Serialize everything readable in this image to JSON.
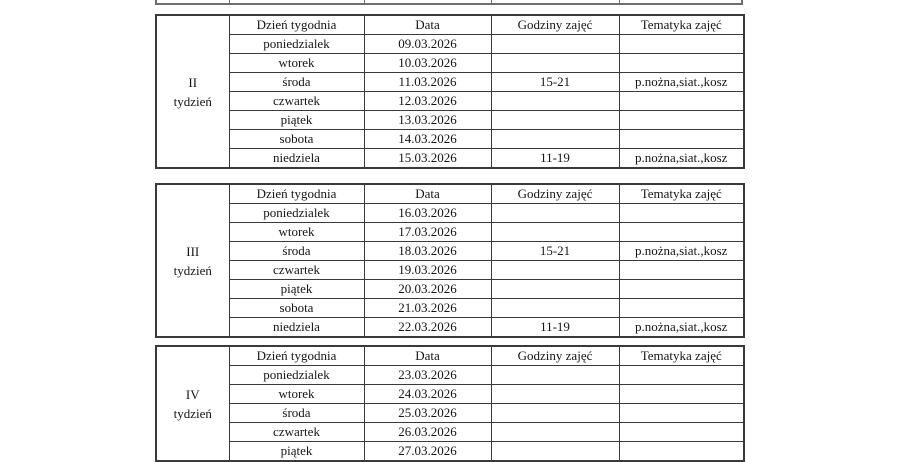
{
  "colors": {
    "background": "#ffffff",
    "text": "#151515",
    "border": "#3a3a3a",
    "clipped_border": "#6e6e6e"
  },
  "tables": [
    {
      "week_label_line1": "II",
      "week_label_line2": "tydzień",
      "headers": [
        "Dzień tygodnia",
        "Data",
        "Godziny zajęć",
        "Tematyka zajęć"
      ],
      "rows": [
        {
          "day": "poniedzialek",
          "date": "09.03.2026",
          "hours": "",
          "topic": ""
        },
        {
          "day": "wtorek",
          "date": "10.03.2026",
          "hours": "",
          "topic": ""
        },
        {
          "day": "środa",
          "date": "11.03.2026",
          "hours": "15-21",
          "topic": "p.nożna,siat.,kosz"
        },
        {
          "day": "czwartek",
          "date": "12.03.2026",
          "hours": "",
          "topic": ""
        },
        {
          "day": "piątek",
          "date": "13.03.2026",
          "hours": "",
          "topic": ""
        },
        {
          "day": "sobota",
          "date": "14.03.2026",
          "hours": "",
          "topic": ""
        },
        {
          "day": "niedziela",
          "date": "15.03.2026",
          "hours": "11-19",
          "topic": "p.nożna,siat.,kosz"
        }
      ]
    },
    {
      "week_label_line1": "III",
      "week_label_line2": "tydzień",
      "headers": [
        "Dzień tygodnia",
        "Data",
        "Godziny zajęć",
        "Tematyka zajęć"
      ],
      "rows": [
        {
          "day": "poniedzialek",
          "date": "16.03.2026",
          "hours": "",
          "topic": ""
        },
        {
          "day": "wtorek",
          "date": "17.03.2026",
          "hours": "",
          "topic": ""
        },
        {
          "day": "środa",
          "date": "18.03.2026",
          "hours": "15-21",
          "topic": "p.nożna,siat.,kosz"
        },
        {
          "day": "czwartek",
          "date": "19.03.2026",
          "hours": "",
          "topic": ""
        },
        {
          "day": "piątek",
          "date": "20.03.2026",
          "hours": "",
          "topic": ""
        },
        {
          "day": "sobota",
          "date": "21.03.2026",
          "hours": "",
          "topic": ""
        },
        {
          "day": "niedziela",
          "date": "22.03.2026",
          "hours": "11-19",
          "topic": "p.nożna,siat.,kosz"
        }
      ]
    },
    {
      "week_label_line1": "IV",
      "week_label_line2": "tydzień",
      "headers": [
        "Dzień tygodnia",
        "Data",
        "Godziny zajęć",
        "Tematyka zajęć"
      ],
      "rows": [
        {
          "day": "poniedzialek",
          "date": "23.03.2026",
          "hours": "",
          "topic": ""
        },
        {
          "day": "wtorek",
          "date": "24.03.2026",
          "hours": "",
          "topic": ""
        },
        {
          "day": "środa",
          "date": "25.03.2026",
          "hours": "",
          "topic": ""
        },
        {
          "day": "czwartek",
          "date": "26.03.2026",
          "hours": "",
          "topic": ""
        },
        {
          "day": "piątek",
          "date": "27.03.2026",
          "hours": "",
          "topic": ""
        }
      ]
    }
  ]
}
